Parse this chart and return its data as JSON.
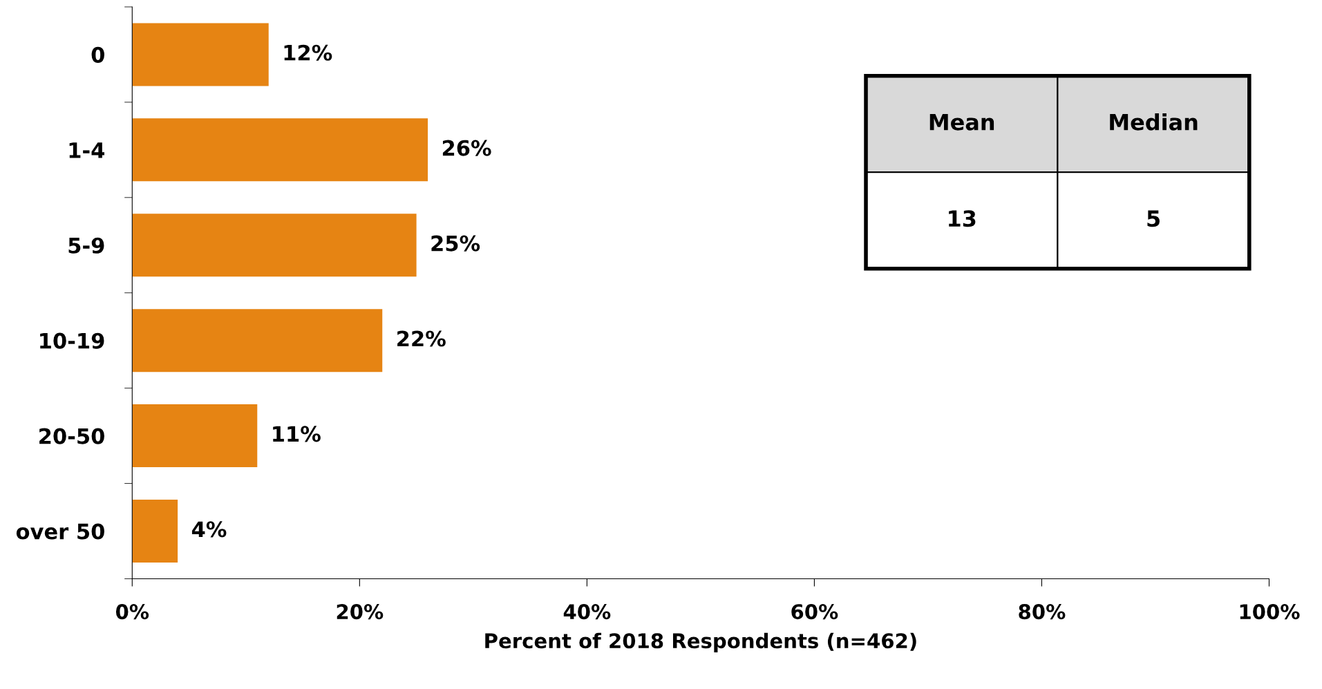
{
  "chart_data": {
    "type": "bar",
    "orientation": "horizontal",
    "xlabel": "Percent of 2018 Respondents (n=462)",
    "categories": [
      "0",
      "1-4",
      "5-9",
      "10-19",
      "20-50",
      "over 50"
    ],
    "values": [
      12,
      26,
      25,
      22,
      11,
      4
    ],
    "value_labels": [
      "12%",
      "26%",
      "25%",
      "22%",
      "11%",
      "4%"
    ],
    "color": "#e68413",
    "xlim": [
      0,
      100
    ],
    "xticks": [
      {
        "value": 0,
        "label": "0%"
      },
      {
        "value": 20,
        "label": "20%"
      },
      {
        "value": 40,
        "label": "40%"
      },
      {
        "value": 60,
        "label": "60%"
      },
      {
        "value": 80,
        "label": "80%"
      },
      {
        "value": 100,
        "label": "100%"
      }
    ],
    "annotations": [
      "Mean",
      "Median",
      "13",
      "5"
    ],
    "grid": false,
    "legend": false
  }
}
